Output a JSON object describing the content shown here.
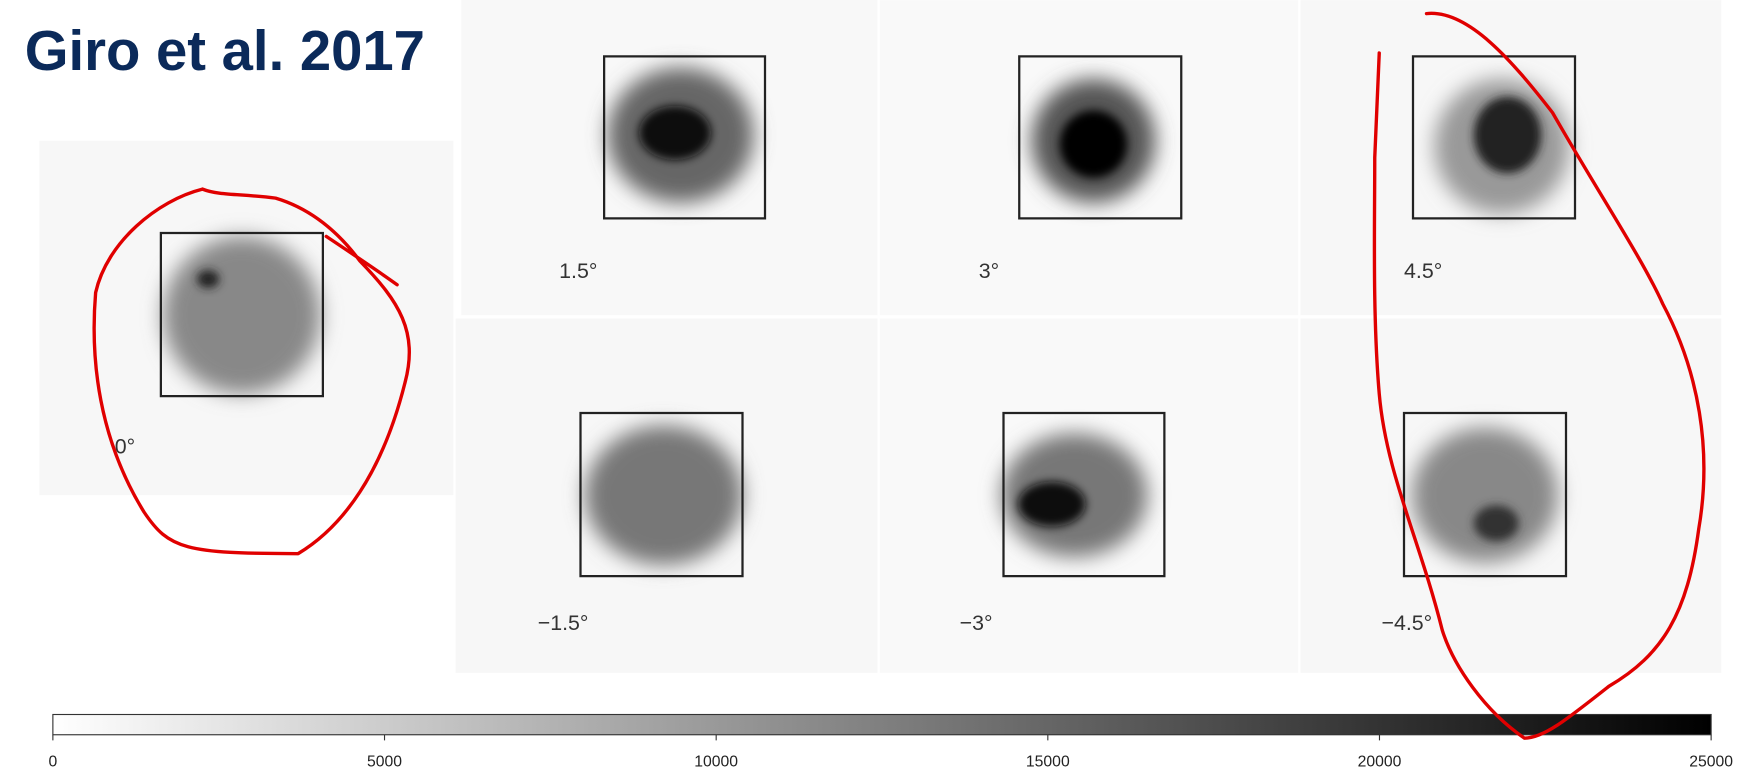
{
  "header": {
    "title": "Giro et al. 2017"
  },
  "panels": [
    {
      "label": "0°"
    },
    {
      "label": "1.5°"
    },
    {
      "label": "3°"
    },
    {
      "label": "4.5°"
    },
    {
      "label": "−1.5°"
    },
    {
      "label": "−3°"
    },
    {
      "label": "−4.5°"
    }
  ],
  "colorbar": {
    "range": [
      0,
      25000
    ],
    "ticks": [
      0,
      5000,
      10000,
      15000,
      20000,
      25000
    ]
  }
}
